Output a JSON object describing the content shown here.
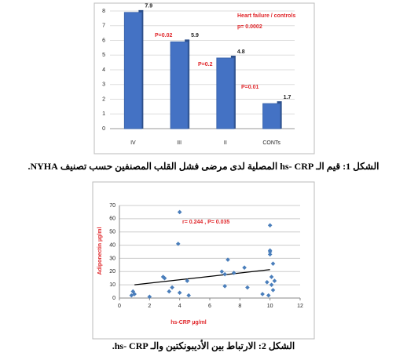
{
  "chart_data": [
    {
      "type": "bar",
      "categories": [
        "IV",
        "III",
        "II",
        "CONTs"
      ],
      "values": [
        7.9,
        5.9,
        4.8,
        1.7
      ],
      "color": "#4472c4",
      "ylim": [
        0,
        8
      ],
      "yticks": [
        0,
        1,
        2,
        3,
        4,
        5,
        6,
        7,
        8
      ],
      "grid": true,
      "annotations": [
        "Heart failure / controls",
        "p= 0.0002",
        "P=0.02",
        "P=0.2",
        "P=0.01"
      ]
    },
    {
      "type": "scatter",
      "color": "#4a7ebb",
      "x": [
        0.8,
        0.9,
        1,
        2,
        2.9,
        3,
        3.3,
        3.5,
        3.9,
        4,
        4,
        4.5,
        4.6,
        6.8,
        7,
        7,
        7.2,
        7.6,
        8.3,
        8.5,
        9.5,
        9.8,
        9.9,
        10,
        10,
        10,
        10,
        10.1,
        10.1,
        10.2,
        10.2,
        10.3
      ],
      "y": [
        2,
        5,
        3,
        1,
        16,
        15,
        5,
        8,
        41,
        65,
        4,
        13,
        2,
        20,
        18,
        9,
        29,
        19,
        23,
        8,
        3,
        12,
        2,
        33,
        35,
        36,
        55,
        16,
        10,
        6,
        26,
        13
      ],
      "xlim": [
        0,
        12
      ],
      "ylim": [
        0,
        70
      ],
      "xticks": [
        0,
        2,
        4,
        6,
        8,
        10,
        12
      ],
      "yticks": [
        0,
        10,
        20,
        30,
        40,
        50,
        60,
        70
      ],
      "grid": true,
      "x_label": "hs-CRP µg/ml",
      "y_label": "Adiponectin µg/ml",
      "annotation": "r= 0.244 , P= 0.035",
      "trendline": {
        "x": [
          1,
          10
        ],
        "y": [
          10,
          21.5
        ],
        "color": "#000000"
      }
    }
  ],
  "captions": [
    "الشكل 1: قيم الـ hs- CRP المصلية لدى مرضى فشل القلب المصنفين حسب تصنيف NYHA.",
    "الشكل 2: الارتباط بين الأديبونكتين والـ hs- CRP."
  ]
}
